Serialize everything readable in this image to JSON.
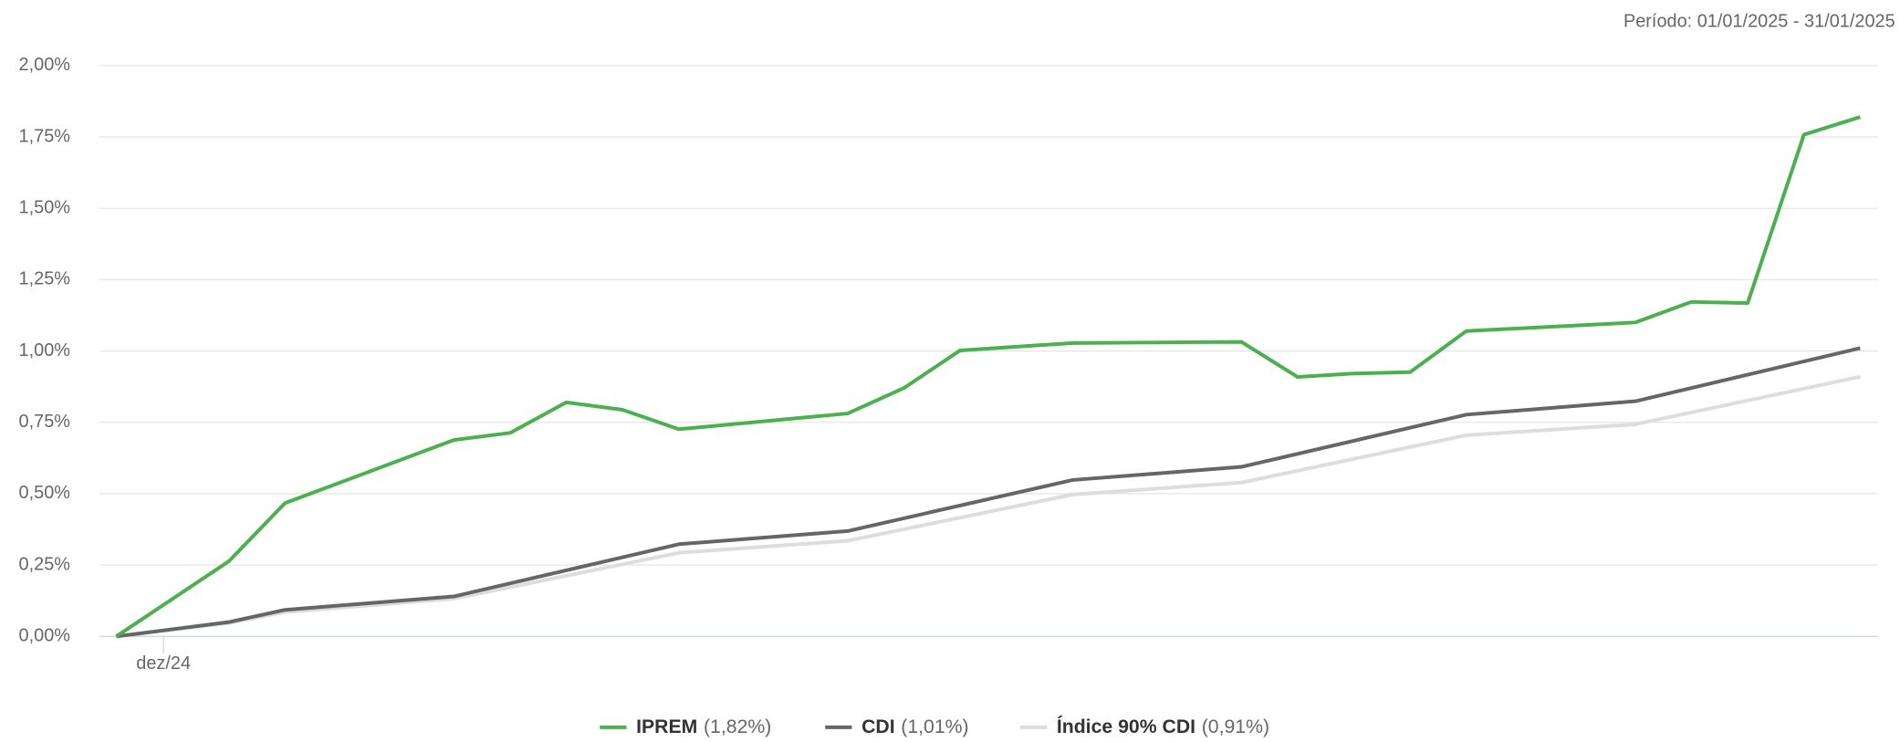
{
  "chart_data": {
    "type": "line",
    "subtitle": "Período: 01/01/2025 - 31/01/2025",
    "xlim": [
      -0.3,
      31.32
    ],
    "xticks": [
      {
        "value": 0.84,
        "label": "dez/24"
      }
    ],
    "ylim": [
      0,
      2
    ],
    "yticks": [
      {
        "value": 0,
        "label": "0,00%"
      },
      {
        "value": 0.25,
        "label": "0,25%"
      },
      {
        "value": 0.5,
        "label": "0,50%"
      },
      {
        "value": 0.75,
        "label": "0,75%"
      },
      {
        "value": 1,
        "label": "1,00%"
      },
      {
        "value": 1.25,
        "label": "1,25%"
      },
      {
        "value": 1.5,
        "label": "1,50%"
      },
      {
        "value": 1.75,
        "label": "1,75%"
      },
      {
        "value": 2,
        "label": "2,00%"
      }
    ],
    "grid": true,
    "series": [
      {
        "name": "IPREM",
        "legend_label": "(1,82%)",
        "color": "#4caf50",
        "x": [
          0,
          2,
          3,
          6,
          7,
          8,
          9,
          10,
          13,
          14,
          15,
          17,
          20,
          21,
          22,
          23,
          24,
          27,
          28,
          29,
          30,
          31
        ],
        "values": [
          0,
          0.263,
          0.467,
          0.688,
          0.713,
          0.82,
          0.794,
          0.726,
          0.781,
          0.87,
          1.002,
          1.028,
          1.032,
          0.909,
          0.921,
          0.926,
          1.07,
          1.1,
          1.172,
          1.168,
          1.758,
          1.82
        ]
      },
      {
        "name": "CDI",
        "legend_label": "(1,01%)",
        "color": "#666666",
        "x": [
          0,
          2,
          3,
          6,
          10,
          13,
          17,
          20,
          24,
          27,
          31
        ],
        "values": [
          0,
          0.05,
          0.093,
          0.14,
          0.323,
          0.369,
          0.548,
          0.594,
          0.777,
          0.824,
          1.01
        ]
      },
      {
        "name": "Índice 90% CDI",
        "legend_label": "(0,91%)",
        "color": "#dddddd",
        "x": [
          0,
          2,
          3,
          6,
          10,
          13,
          17,
          20,
          24,
          27,
          31
        ],
        "values": [
          0,
          0.047,
          0.085,
          0.132,
          0.293,
          0.335,
          0.497,
          0.539,
          0.705,
          0.743,
          0.91
        ]
      }
    ]
  }
}
